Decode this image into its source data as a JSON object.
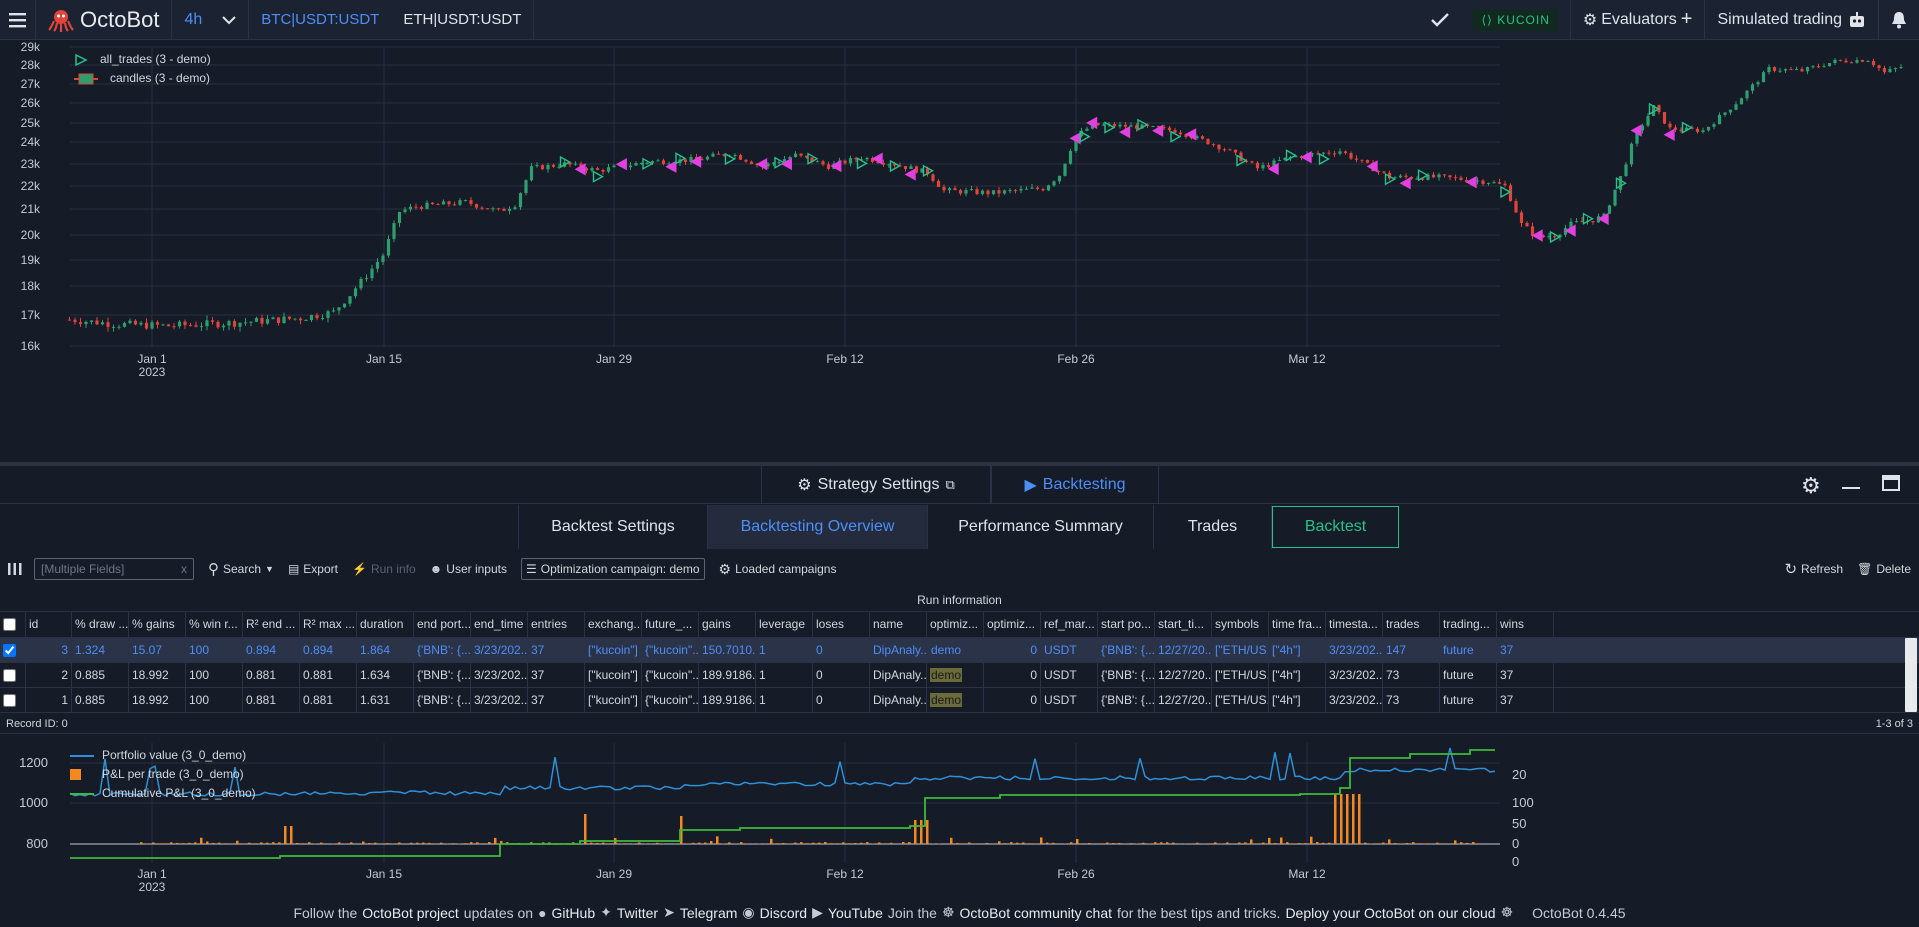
{
  "topbar": {
    "brand": "OctoBot",
    "timeframe": "4h",
    "symbols": [
      "BTC|USDT:USDT",
      "ETH|USDT:USDT"
    ],
    "exchange": "KUCOIN",
    "evaluators": "Evaluators",
    "mode": "Simulated trading"
  },
  "main_chart": {
    "legend": [
      "all_trades (3 - demo)",
      "candles (3 - demo)"
    ],
    "y_ticks": [
      "29k",
      "28k",
      "27k",
      "26k",
      "25k",
      "24k",
      "23k",
      "22k",
      "21k",
      "20k",
      "19k",
      "18k",
      "17k",
      "16k"
    ],
    "x_ticks": [
      "Jan 1",
      "Jan 15",
      "Jan 29",
      "Feb 12",
      "Feb 26",
      "Mar 12"
    ],
    "x_year": "2023"
  },
  "panel": {
    "strategy_settings": "Strategy Settings",
    "backtesting": "Backtesting"
  },
  "tabs": [
    "Backtest Settings",
    "Backtesting Overview",
    "Performance Summary",
    "Trades",
    "Backtest"
  ],
  "gridbar": {
    "search_placeholder": "[Multiple Fields]",
    "search": "Search",
    "export": "Export",
    "run_info": "Run info",
    "user_inputs": "User inputs",
    "campaign": "Optimization campaign: demo",
    "loaded": "Loaded campaigns",
    "refresh": "Refresh",
    "delete": "Delete"
  },
  "table": {
    "group": "Run information",
    "columns": [
      "id",
      "% draw ...",
      "% gains",
      "% win r...",
      "R² end ...",
      "R² max ...",
      "duration",
      "end port...",
      "end_time",
      "entries",
      "exchang...",
      "future_...",
      "gains",
      "leverage",
      "loses",
      "name",
      "optimiz...",
      "optimiz...",
      "ref_mar...",
      "start po...",
      "start_ti...",
      "symbols",
      "time fra...",
      "timesta...",
      "trades",
      "trading...",
      "wins"
    ],
    "rows": [
      [
        "3",
        "1.324",
        "15.07",
        "100",
        "0.894",
        "0.894",
        "1.864",
        "{'BNB': {...",
        "3/23/202...",
        "37",
        "[\"kucoin\"]",
        "{\"kucoin\"...",
        "150.7010...",
        "1",
        "0",
        "DipAnaly...",
        "demo",
        "0",
        "USDT",
        "{'BNB': {...",
        "12/27/20...",
        "[\"ETH/US...",
        "[\"4h\"]",
        "3/23/202...",
        "147",
        "future",
        "37"
      ],
      [
        "2",
        "0.885",
        "18.992",
        "100",
        "0.881",
        "0.881",
        "1.634",
        "{'BNB': {...",
        "3/23/202...",
        "37",
        "[\"kucoin\"]",
        "{\"kucoin\"...",
        "189.9186...",
        "1",
        "0",
        "DipAnaly...",
        "demo",
        "0",
        "USDT",
        "{'BNB': {...",
        "12/27/20...",
        "[\"ETH/US...",
        "[\"4h\"]",
        "3/23/202...",
        "73",
        "future",
        "37"
      ],
      [
        "1",
        "0.885",
        "18.992",
        "100",
        "0.881",
        "0.881",
        "1.631",
        "{'BNB': {...",
        "3/23/202...",
        "37",
        "[\"kucoin\"]",
        "{\"kucoin\"...",
        "189.9186...",
        "1",
        "0",
        "DipAnaly...",
        "demo",
        "0",
        "USDT",
        "{'BNB': {...",
        "12/27/20...",
        "[\"ETH/US...",
        "[\"4h\"]",
        "3/23/202...",
        "73",
        "future",
        "37"
      ]
    ]
  },
  "status": {
    "record": "Record ID: 0",
    "count": "1-3 of 3"
  },
  "bottom_chart": {
    "legend": [
      "Portfolio value (3_0_demo)",
      "P&L per trade (3_0_demo)",
      "Cumulative P&L (3_0_demo)"
    ],
    "y_left": [
      "1200",
      "1000",
      "800"
    ],
    "y_right": [
      "20",
      "100",
      "50",
      "0",
      "0"
    ],
    "x_ticks": [
      "Jan 1",
      "Jan 15",
      "Jan 29",
      "Feb 12",
      "Feb 26",
      "Mar 12"
    ],
    "x_year": "2023"
  },
  "footer": {
    "t1": "Follow the",
    "project": "OctoBot project",
    "t2": "updates on",
    "github": "GitHub",
    "twitter": "Twitter",
    "telegram": "Telegram",
    "discord": "Discord",
    "youtube": "YouTube",
    "t3": "Join the",
    "community": "OctoBot community chat",
    "t4": "for the best tips and tricks.",
    "deploy": "Deploy your OctoBot on our cloud",
    "version": "OctoBot 0.4.45"
  },
  "colors": {
    "accent": "#4e8ef7",
    "green": "#25c28a",
    "candle_up": "#2e9e6e",
    "candle_down": "#e0443a",
    "trade_marker": "#e040e0"
  }
}
